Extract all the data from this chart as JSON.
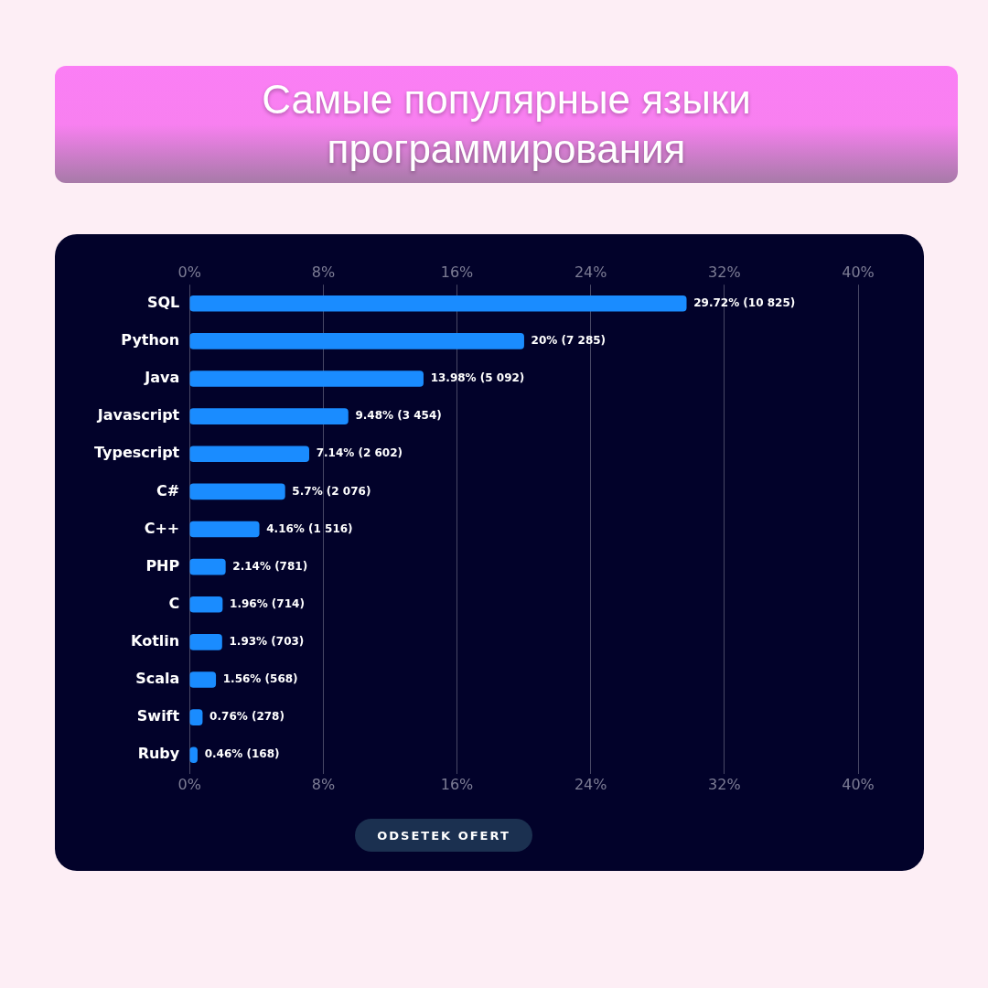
{
  "chart_data": {
    "type": "bar",
    "orientation": "horizontal",
    "title": "Самые популярные языки программирования",
    "xlabel": "ODSETEK OFERT",
    "categories": [
      "SQL",
      "Python",
      "Java",
      "Javascript",
      "Typescript",
      "C#",
      "C++",
      "PHP",
      "C",
      "Kotlin",
      "Scala",
      "Swift",
      "Ruby"
    ],
    "values": [
      29.72,
      20,
      13.98,
      9.48,
      7.14,
      5.7,
      4.16,
      2.14,
      1.96,
      1.93,
      1.56,
      0.76,
      0.46
    ],
    "value_labels": [
      "29.72% (10 825)",
      "20% (7 285)",
      "13.98% (5 092)",
      "9.48% (3 454)",
      "7.14% (2 602)",
      "5.7% (2 076)",
      "4.16% (1 516)",
      "2.14% (781)",
      "1.96% (714)",
      "1.93% (703)",
      "1.56% (568)",
      "0.76% (278)",
      "0.46% (168)"
    ],
    "color": "#1a8cff",
    "xlim": [
      0,
      40
    ],
    "xticks": [
      {
        "value": 0,
        "label": "0%"
      },
      {
        "value": 8,
        "label": "8%"
      },
      {
        "value": 16,
        "label": "16%"
      },
      {
        "value": 24,
        "label": "24%"
      },
      {
        "value": 32,
        "label": "32%"
      },
      {
        "value": 40,
        "label": "40%"
      }
    ],
    "x2lim": [
      0,
      40
    ],
    "x2ticks": [
      {
        "value": 0,
        "label": "0%"
      },
      {
        "value": 8,
        "label": "8%"
      },
      {
        "value": 16,
        "label": "16%"
      },
      {
        "value": 24,
        "label": "24%"
      },
      {
        "value": 32,
        "label": "32%"
      },
      {
        "value": 40,
        "label": "40%"
      }
    ],
    "grid": "x",
    "legend": false
  }
}
